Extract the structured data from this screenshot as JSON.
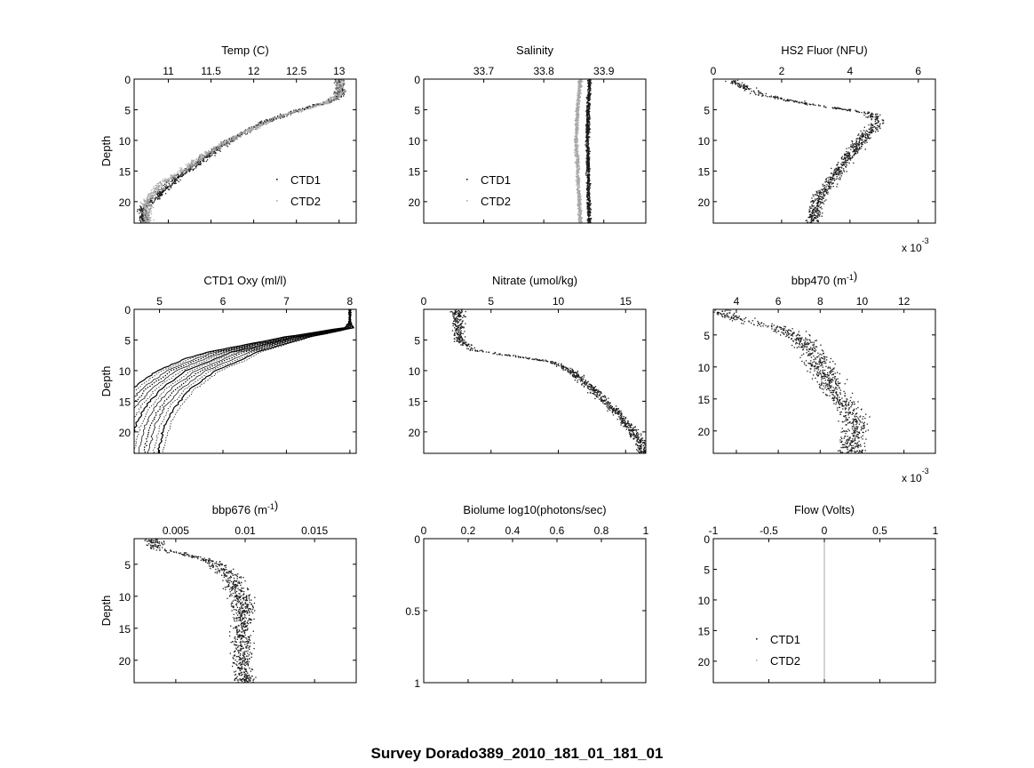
{
  "figure": {
    "title": "Survey Dorado389_2010_181_01_181_01"
  },
  "chart_data": [
    {
      "id": "temp",
      "type": "scatter",
      "title_parts": [
        {
          "t": "Temp (C)"
        }
      ],
      "xlim": [
        10.6,
        13.2
      ],
      "ylim": [
        0,
        23.5
      ],
      "xticks": [
        11,
        11.5,
        12,
        12.5,
        13
      ],
      "xticklabels": [
        "11",
        "11.5",
        "12",
        "12.5",
        "13"
      ],
      "yticks": [
        0,
        5,
        10,
        15,
        20
      ],
      "ylabel": "Depth",
      "legend": {
        "position": "lower-right",
        "entries": [
          "CTD1",
          "CTD2"
        ]
      },
      "series": [
        {
          "name": "CTD1",
          "color": "#1a1a1a",
          "profile": [
            [
              13.0,
              0
            ],
            [
              13.0,
              2.5
            ],
            [
              12.9,
              3.5
            ],
            [
              12.5,
              5
            ],
            [
              12.1,
              7
            ],
            [
              11.7,
              10
            ],
            [
              11.4,
              13
            ],
            [
              11.1,
              16
            ],
            [
              10.9,
              18.5
            ],
            [
              10.7,
              21
            ]
          ]
        },
        {
          "name": "CTD2",
          "color": "#a8a8a8",
          "profile": [
            [
              13.0,
              0
            ],
            [
              13.0,
              2.5
            ],
            [
              12.8,
              4
            ],
            [
              12.3,
              6
            ],
            [
              11.9,
              8.5
            ],
            [
              11.5,
              11.5
            ],
            [
              11.2,
              14.5
            ],
            [
              10.9,
              17
            ],
            [
              10.75,
              20
            ]
          ]
        }
      ]
    },
    {
      "id": "salinity",
      "type": "scatter",
      "title_parts": [
        {
          "t": "Salinity"
        }
      ],
      "xlim": [
        33.6,
        33.97
      ],
      "ylim": [
        0,
        23.5
      ],
      "xticks": [
        33.7,
        33.8,
        33.9
      ],
      "xticklabels": [
        "33.7",
        "33.8",
        "33.9"
      ],
      "yticks": [
        0,
        5,
        10,
        15,
        20
      ],
      "legend": {
        "position": "lower-left",
        "entries": [
          "CTD1",
          "CTD2"
        ]
      },
      "series": [
        {
          "name": "CTD1",
          "color": "#1a1a1a",
          "profile": [
            [
              33.875,
              0
            ],
            [
              33.873,
              5
            ],
            [
              33.872,
              10
            ],
            [
              33.873,
              15
            ],
            [
              33.874,
              20
            ],
            [
              33.875,
              23.5
            ]
          ]
        },
        {
          "name": "CTD2",
          "color": "#a8a8a8",
          "profile": [
            [
              33.86,
              0
            ],
            [
              33.855,
              5
            ],
            [
              33.853,
              10
            ],
            [
              33.856,
              15
            ],
            [
              33.858,
              20
            ],
            [
              33.86,
              23.5
            ]
          ]
        }
      ]
    },
    {
      "id": "hs2",
      "type": "scatter",
      "title_parts": [
        {
          "t": "HS2 Fluor (NFU)"
        }
      ],
      "xlim": [
        0,
        0.0065
      ],
      "ylim": [
        0,
        23.5
      ],
      "xticks": [
        0,
        0.002,
        0.004,
        0.006
      ],
      "xticklabels": [
        "0",
        "2",
        "4",
        "6"
      ],
      "yticks": [
        5,
        10,
        15,
        20
      ],
      "exponent": {
        "base": "x 10",
        "exp": "-3"
      },
      "series": [
        {
          "name": "",
          "color": "#1a1a1a",
          "profile": [
            [
              0.0005,
              0
            ],
            [
              0.001,
              1.5
            ],
            [
              0.0014,
              2.5
            ],
            [
              0.0028,
              4
            ],
            [
              0.0046,
              5.5
            ],
            [
              0.0048,
              7
            ],
            [
              0.0043,
              10
            ],
            [
              0.0039,
              13
            ],
            [
              0.0035,
              16
            ],
            [
              0.0031,
              19
            ],
            [
              0.0029,
              23.5
            ]
          ]
        }
      ]
    },
    {
      "id": "oxy",
      "type": "line",
      "title_parts": [
        {
          "t": "CTD1 Oxy (ml/l)"
        }
      ],
      "xlim": [
        4.6,
        8.1
      ],
      "ylim": [
        0,
        23.5
      ],
      "xticks": [
        5,
        6,
        7,
        8
      ],
      "xticklabels": [
        "5",
        "6",
        "7",
        "8"
      ],
      "yticks": [
        0,
        5,
        10,
        15,
        20
      ],
      "ylabel": "Depth",
      "series": [
        {
          "name": "",
          "color": "#000000",
          "profile": [
            [
              8.0,
              0
            ],
            [
              8.0,
              3
            ],
            [
              7.2,
              4.5
            ],
            [
              6.2,
              7
            ],
            [
              5.5,
              10
            ],
            [
              5.1,
              13
            ],
            [
              4.85,
              16
            ],
            [
              4.7,
              19
            ],
            [
              4.6,
              23
            ]
          ]
        }
      ]
    },
    {
      "id": "nitrate",
      "type": "scatter",
      "title_parts": [
        {
          "t": "Nitrate (umol/kg)"
        }
      ],
      "xlim": [
        0,
        16.5
      ],
      "ylim": [
        0,
        23.5
      ],
      "xticks": [
        0,
        5,
        10,
        15
      ],
      "xticklabels": [
        "0",
        "5",
        "10",
        "15"
      ],
      "yticks": [
        5,
        10,
        15,
        20
      ],
      "series": [
        {
          "name": "",
          "color": "#1a1a1a",
          "profile": [
            [
              2.5,
              2.5
            ],
            [
              2.6,
              5
            ],
            [
              3.5,
              6.5
            ],
            [
              6.5,
              7.5
            ],
            [
              9.5,
              8.5
            ],
            [
              11.0,
              10
            ],
            [
              12.0,
              12
            ],
            [
              13.0,
              14
            ],
            [
              14.5,
              17
            ],
            [
              15.5,
              20
            ],
            [
              16.2,
              22
            ]
          ]
        }
      ]
    },
    {
      "id": "bbp470",
      "type": "scatter",
      "title_parts": [
        {
          "t": "bbp470 ("
        },
        {
          "t": "m"
        },
        {
          "t": "-1",
          "sup": true
        },
        {
          "t": ")"
        }
      ],
      "xlim": [
        0.0029,
        0.0135
      ],
      "ylim": [
        1,
        23.5
      ],
      "xticks": [
        0.004,
        0.006,
        0.008,
        0.01,
        0.012
      ],
      "xticklabels": [
        "4",
        "6",
        "8",
        "10",
        "12"
      ],
      "yticks": [
        5,
        10,
        15,
        20
      ],
      "exponent": {
        "base": "x 10",
        "exp": "-3"
      },
      "series": [
        {
          "name": "",
          "color": "#1a1a1a",
          "profile": [
            [
              0.0032,
              1.5
            ],
            [
              0.0045,
              2.8
            ],
            [
              0.0062,
              4
            ],
            [
              0.0072,
              6
            ],
            [
              0.0078,
              8.5
            ],
            [
              0.0082,
              11
            ],
            [
              0.0086,
              13.5
            ],
            [
              0.0092,
              16
            ],
            [
              0.0097,
              19
            ],
            [
              0.0095,
              22
            ]
          ]
        }
      ]
    },
    {
      "id": "bbp676",
      "type": "scatter",
      "title_parts": [
        {
          "t": "bbp676 ("
        },
        {
          "t": "m"
        },
        {
          "t": "-1",
          "sup": true
        },
        {
          "t": ")"
        }
      ],
      "xlim": [
        0.002,
        0.018
      ],
      "ylim": [
        1,
        23.5
      ],
      "xticks": [
        0.005,
        0.01,
        0.015
      ],
      "xticklabels": [
        "0.005",
        "0.01",
        "0.015"
      ],
      "yticks": [
        5,
        10,
        15,
        20
      ],
      "ylabel": "Depth",
      "series": [
        {
          "name": "",
          "color": "#1a1a1a",
          "profile": [
            [
              0.0035,
              2.5
            ],
            [
              0.0055,
              3.2
            ],
            [
              0.0075,
              4.5
            ],
            [
              0.0088,
              6.5
            ],
            [
              0.0095,
              9
            ],
            [
              0.0098,
              11
            ],
            [
              0.0098,
              14
            ],
            [
              0.0097,
              17
            ],
            [
              0.0098,
              20
            ],
            [
              0.0099,
              23
            ]
          ]
        }
      ]
    },
    {
      "id": "biolume",
      "type": "scatter",
      "title_parts": [
        {
          "t": "Biolume log10(photons/sec)"
        }
      ],
      "xlim": [
        0,
        1
      ],
      "ylim": [
        0,
        1
      ],
      "xticks": [
        0,
        0.2,
        0.4,
        0.6,
        0.8,
        1
      ],
      "xticklabels": [
        "0",
        "0.2",
        "0.4",
        "0.6",
        "0.8",
        "1"
      ],
      "yticks": [
        0,
        0.5,
        1
      ],
      "yticklabels": [
        "0",
        "0.5",
        "1"
      ],
      "series": []
    },
    {
      "id": "flow",
      "type": "line",
      "title_parts": [
        {
          "t": "Flow (Volts)"
        }
      ],
      "xlim": [
        -1,
        1
      ],
      "ylim": [
        0,
        23.5
      ],
      "xticks": [
        -1,
        -0.5,
        0,
        0.5,
        1
      ],
      "xticklabels": [
        "-1",
        "-0.5",
        "0",
        "0.5",
        "1"
      ],
      "yticks": [
        0,
        5,
        10,
        15,
        20
      ],
      "legend": {
        "position": "lower-left",
        "entries": [
          "CTD1",
          "CTD2"
        ]
      },
      "series": [
        {
          "name": "CTD1",
          "color": "#1a1a1a",
          "profile": [
            [
              0,
              0
            ],
            [
              0,
              23.5
            ]
          ]
        },
        {
          "name": "CTD2",
          "color": "#a8a8a8",
          "profile": [
            [
              0,
              0
            ],
            [
              0,
              23.5
            ]
          ]
        }
      ]
    }
  ]
}
